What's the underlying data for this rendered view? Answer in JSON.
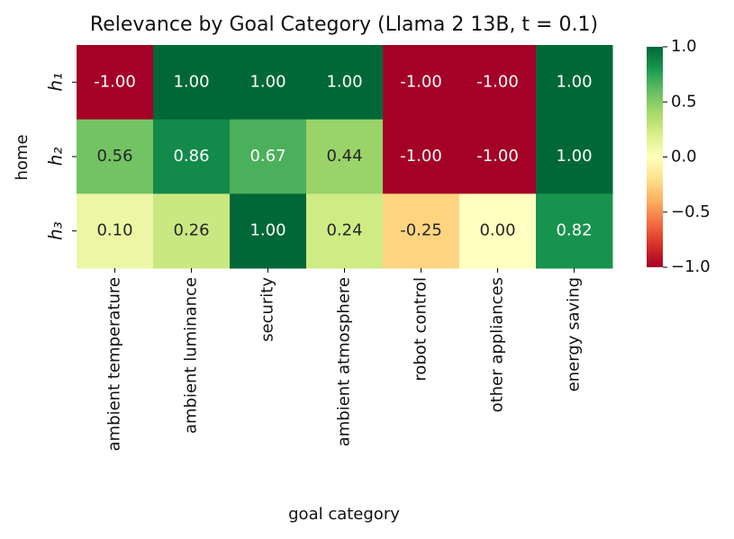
{
  "chart_data": {
    "type": "heatmap",
    "title": "Relevance by Goal Category (Llama 2 13B, t = 0.1)",
    "x_label": "goal category",
    "y_label": "home",
    "x_categories": [
      "ambient temperature",
      "ambient luminance",
      "security",
      "ambient atmosphere",
      "robot control",
      "other appliances",
      "energy saving"
    ],
    "y_categories": [
      "h₁",
      "h₂",
      "h₃"
    ],
    "values": [
      [
        -1,
        1,
        1,
        1,
        -1,
        -1,
        1
      ],
      [
        0.56,
        0.86,
        0.67,
        0.44,
        -1,
        -1,
        1
      ],
      [
        0.1,
        0.26,
        1,
        0.24,
        -0.25,
        0,
        0.82
      ]
    ],
    "value_labels": [
      [
        "-1.00",
        "1.00",
        "1.00",
        "1.00",
        "-1.00",
        "-1.00",
        "1.00"
      ],
      [
        "0.56",
        "0.86",
        "0.67",
        "0.44",
        "-1.00",
        "-1.00",
        "1.00"
      ],
      [
        "0.10",
        "0.26",
        "1.00",
        "0.24",
        "-0.25",
        "0.00",
        "0.82"
      ]
    ],
    "clim": [
      -1,
      1
    ],
    "colormap": [
      "#a50026",
      "#d73027",
      "#f46d43",
      "#fdae61",
      "#fee08b",
      "#ffffbf",
      "#d9ef8b",
      "#a6d96a",
      "#66bd63",
      "#1a9850",
      "#006837"
    ],
    "cticks": [
      {
        "value": -1,
        "label": "−1.0"
      },
      {
        "value": -0.5,
        "label": "−0.5"
      },
      {
        "value": 0,
        "label": "0.0"
      },
      {
        "value": 0.5,
        "label": "0.5"
      },
      {
        "value": 1,
        "label": "1.0"
      }
    ]
  }
}
